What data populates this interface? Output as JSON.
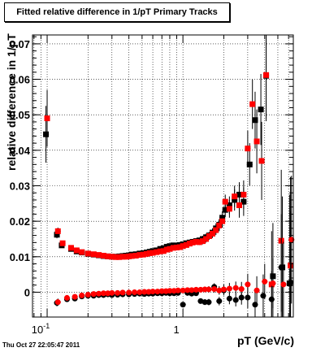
{
  "chart_data": {
    "type": "scatter",
    "title": "Fitted relative difference in 1/pT  Primary Tracks",
    "xlabel": "pT (GeV/c)",
    "ylabel": "relative difference in 1/pT",
    "x_scale": "log",
    "xlim": [
      0.078,
      6.5
    ],
    "ylim": [
      -0.007,
      0.0725
    ],
    "x_ticks": [
      {
        "value": 0.1,
        "label": "10",
        "sup": "-1"
      },
      {
        "value": 1,
        "label": "1",
        "sup": ""
      }
    ],
    "y_ticks": [
      0,
      0.01,
      0.02,
      0.03,
      0.04,
      0.05,
      0.06,
      0.07
    ],
    "y_tick_labels": [
      "0",
      "0.01",
      "0.02",
      "0.03",
      "0.04",
      "0.05",
      "0.06",
      "0.07"
    ],
    "grid": true,
    "legend": "none",
    "colors": {
      "black_series": "#000000",
      "red_series": "#ff0000"
    },
    "series": [
      {
        "color": "black",
        "marker": "square",
        "x": [
          0.098,
          0.118,
          0.128,
          0.15,
          0.165,
          0.18,
          0.2,
          0.22,
          0.24,
          0.26,
          0.28,
          0.3,
          0.32,
          0.34,
          0.36,
          0.38,
          0.4,
          0.42,
          0.45,
          0.48,
          0.51,
          0.54,
          0.57,
          0.6,
          0.64,
          0.68,
          0.72,
          0.76,
          0.8,
          0.85,
          0.9,
          0.95,
          1.0,
          1.06,
          1.12,
          1.18,
          1.25,
          1.32,
          1.4,
          1.48,
          1.56,
          1.65,
          1.75,
          1.85,
          1.95,
          2.05,
          2.2,
          2.4,
          2.6,
          2.8,
          3.1,
          3.4,
          3.75,
          4.1,
          4.6,
          5.4,
          6.1
        ],
        "y": [
          0.0445,
          0.0162,
          0.0132,
          0.0122,
          0.0115,
          0.0112,
          0.0108,
          0.0106,
          0.0104,
          0.0102,
          0.0101,
          0.01,
          0.01,
          0.0101,
          0.0102,
          0.0103,
          0.0104,
          0.0106,
          0.0107,
          0.0109,
          0.011,
          0.0112,
          0.0114,
          0.0116,
          0.0118,
          0.0122,
          0.0124,
          0.0128,
          0.013,
          0.0132,
          0.0131,
          0.0133,
          0.0135,
          0.0138,
          0.014,
          0.0142,
          0.0144,
          0.0146,
          0.015,
          0.0155,
          0.016,
          0.0168,
          0.018,
          0.019,
          0.021,
          0.0232,
          0.0245,
          0.026,
          0.0275,
          0.0255,
          0.036,
          0.0485,
          0.0515,
          0.061,
          0.0045,
          0.007,
          0.0025
        ],
        "yerr": [
          0.008,
          0.001,
          0.0006,
          0.0004,
          0.0004,
          0.0004,
          0.0004,
          0.0004,
          0.0004,
          0.0004,
          0.0004,
          0.0004,
          0.0004,
          0.0004,
          0.0004,
          0.0004,
          0.0004,
          0.0004,
          0.0004,
          0.0004,
          0.0004,
          0.0004,
          0.0004,
          0.0004,
          0.0005,
          0.0005,
          0.0005,
          0.0005,
          0.0005,
          0.0005,
          0.0005,
          0.0006,
          0.0006,
          0.0006,
          0.0006,
          0.0007,
          0.0007,
          0.0008,
          0.0009,
          0.001,
          0.001,
          0.0012,
          0.0014,
          0.0016,
          0.0018,
          0.002,
          0.0025,
          0.003,
          0.0035,
          0.004,
          0.006,
          0.008,
          0.01,
          0.012,
          0.015,
          0.02,
          0.025
        ]
      },
      {
        "color": "red",
        "marker": "square",
        "x": [
          0.1,
          0.12,
          0.13,
          0.15,
          0.165,
          0.18,
          0.2,
          0.22,
          0.24,
          0.26,
          0.28,
          0.3,
          0.32,
          0.34,
          0.36,
          0.38,
          0.4,
          0.42,
          0.45,
          0.48,
          0.51,
          0.54,
          0.57,
          0.6,
          0.64,
          0.68,
          0.72,
          0.76,
          0.8,
          0.85,
          0.9,
          0.95,
          1.0,
          1.06,
          1.12,
          1.18,
          1.25,
          1.32,
          1.4,
          1.48,
          1.56,
          1.65,
          1.75,
          1.85,
          1.95,
          2.05,
          2.2,
          2.4,
          2.6,
          2.8,
          3.0,
          3.25,
          3.5,
          3.8,
          4.1,
          4.5,
          5.3,
          6.2
        ],
        "y": [
          0.049,
          0.0172,
          0.0138,
          0.0125,
          0.0118,
          0.0113,
          0.0109,
          0.0107,
          0.0105,
          0.0103,
          0.0101,
          0.01,
          0.0099,
          0.0099,
          0.01,
          0.01,
          0.0101,
          0.0102,
          0.0103,
          0.0105,
          0.0106,
          0.0108,
          0.011,
          0.0111,
          0.0113,
          0.0115,
          0.0116,
          0.012,
          0.0122,
          0.0125,
          0.0126,
          0.0127,
          0.013,
          0.0133,
          0.0137,
          0.014,
          0.0142,
          0.0141,
          0.0144,
          0.015,
          0.0158,
          0.0165,
          0.0175,
          0.0188,
          0.02,
          0.0255,
          0.0235,
          0.027,
          0.0245,
          0.0275,
          0.0405,
          0.053,
          0.0425,
          0.037,
          0.0612,
          0.0022,
          0.0145,
          0.0075
        ],
        "yerr": [
          0.008,
          0.001,
          0.0006,
          0.0004,
          0.0004,
          0.0004,
          0.0004,
          0.0004,
          0.0004,
          0.0004,
          0.0004,
          0.0004,
          0.0004,
          0.0004,
          0.0004,
          0.0004,
          0.0004,
          0.0004,
          0.0004,
          0.0004,
          0.0004,
          0.0004,
          0.0004,
          0.0004,
          0.0005,
          0.0005,
          0.0005,
          0.0005,
          0.0005,
          0.0005,
          0.0005,
          0.0006,
          0.0006,
          0.0006,
          0.0006,
          0.0007,
          0.0007,
          0.0008,
          0.0009,
          0.001,
          0.001,
          0.0012,
          0.0014,
          0.0016,
          0.0018,
          0.002,
          0.0025,
          0.003,
          0.0035,
          0.004,
          0.005,
          0.007,
          0.009,
          0.011,
          0.013,
          0.015,
          0.02,
          0.025
        ]
      },
      {
        "color": "black",
        "marker": "circle",
        "x": [
          0.118,
          0.14,
          0.16,
          0.18,
          0.2,
          0.22,
          0.24,
          0.26,
          0.28,
          0.3,
          0.33,
          0.36,
          0.4,
          0.44,
          0.48,
          0.52,
          0.56,
          0.6,
          0.65,
          0.7,
          0.75,
          0.8,
          0.86,
          0.92,
          1.0,
          1.08,
          1.16,
          1.25,
          1.35,
          1.45,
          1.55,
          1.7,
          1.85,
          2.0,
          2.2,
          2.45,
          2.7,
          3.0,
          3.4,
          3.9,
          4.5,
          5.3,
          6.2
        ],
        "y": [
          -0.003,
          -0.002,
          -0.0018,
          -0.0012,
          -0.001,
          -0.001,
          -0.0008,
          -0.0008,
          -0.0006,
          -0.0008,
          -0.0007,
          -0.0006,
          -0.0006,
          -0.0005,
          -0.0004,
          -0.0005,
          -0.0004,
          -0.0004,
          -0.0003,
          -0.0003,
          -0.0002,
          -0.0003,
          -0.0003,
          -0.0002,
          -0.0035,
          -0.0002,
          -0.0004,
          -0.0003,
          -0.0025,
          -0.0028,
          -0.0028,
          0.0015,
          -0.0025,
          0.0005,
          -0.0018,
          -0.0022,
          -0.0015,
          -0.0015,
          -0.0035,
          -0.001,
          -0.002,
          0.007,
          0.0028
        ],
        "yerr": [
          0.001,
          0.0006,
          0.0004,
          0.0004,
          0.0004,
          0.0004,
          0.0004,
          0.0004,
          0.0004,
          0.0004,
          0.0004,
          0.0004,
          0.0004,
          0.0004,
          0.0004,
          0.0004,
          0.0004,
          0.0004,
          0.0005,
          0.0005,
          0.0005,
          0.0005,
          0.0005,
          0.0005,
          0.0006,
          0.0006,
          0.0006,
          0.0007,
          0.0007,
          0.0008,
          0.0009,
          0.001,
          0.0012,
          0.0014,
          0.0016,
          0.0018,
          0.002,
          0.003,
          0.004,
          0.006,
          0.008,
          0.015,
          0.02
        ]
      },
      {
        "color": "red",
        "marker": "circle",
        "x": [
          0.12,
          0.14,
          0.16,
          0.18,
          0.2,
          0.22,
          0.24,
          0.26,
          0.28,
          0.3,
          0.33,
          0.36,
          0.4,
          0.44,
          0.48,
          0.52,
          0.56,
          0.6,
          0.65,
          0.7,
          0.75,
          0.8,
          0.86,
          0.92,
          1.0,
          1.08,
          1.16,
          1.25,
          1.35,
          1.45,
          1.55,
          1.7,
          1.85,
          2.0,
          2.2,
          2.45,
          2.7,
          3.0,
          3.5,
          4.0,
          4.6,
          5.5,
          6.3
        ],
        "y": [
          -0.0028,
          -0.0016,
          -0.0013,
          -0.0009,
          -0.0007,
          -0.0005,
          -0.0004,
          -0.0003,
          -0.0003,
          -0.0002,
          -0.0002,
          -0.0001,
          -0.0001,
          0.0,
          0.0,
          0.0001,
          0.0001,
          0.0002,
          0.0002,
          0.0003,
          0.0003,
          0.0004,
          0.0004,
          0.0005,
          0.0005,
          0.0006,
          0.0006,
          0.0007,
          0.0007,
          0.0008,
          0.0008,
          0.0009,
          0.0005,
          0.0008,
          0.001,
          0.0012,
          0.0009,
          0.0022,
          0.0005,
          0.003,
          0.0025,
          0.0022,
          0.0148
        ],
        "yerr": [
          0.001,
          0.0006,
          0.0004,
          0.0004,
          0.0004,
          0.0004,
          0.0004,
          0.0004,
          0.0004,
          0.0004,
          0.0004,
          0.0004,
          0.0004,
          0.0004,
          0.0004,
          0.0004,
          0.0004,
          0.0004,
          0.0005,
          0.0005,
          0.0005,
          0.0005,
          0.0005,
          0.0005,
          0.0006,
          0.0006,
          0.0006,
          0.0007,
          0.0007,
          0.0008,
          0.0009,
          0.001,
          0.0012,
          0.0014,
          0.0016,
          0.0018,
          0.002,
          0.003,
          0.004,
          0.005,
          0.007,
          0.012,
          0.018
        ]
      }
    ]
  },
  "timestamp": "Thu Oct 27 22:05:47 2011"
}
